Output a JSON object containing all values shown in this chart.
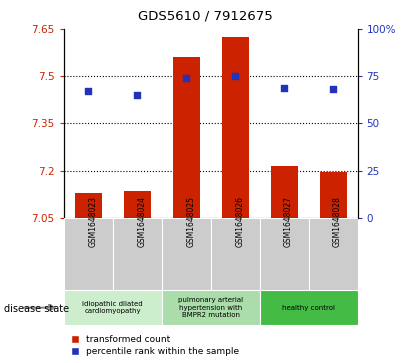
{
  "title": "GDS5610 / 7912675",
  "samples": [
    "GSM1648023",
    "GSM1648024",
    "GSM1648025",
    "GSM1648026",
    "GSM1648027",
    "GSM1648028"
  ],
  "bar_values": [
    7.13,
    7.135,
    7.56,
    7.625,
    7.215,
    7.195
  ],
  "percentile_values": [
    67,
    65,
    74,
    75,
    69,
    68
  ],
  "ylim_left": [
    7.05,
    7.65
  ],
  "ylim_right": [
    0,
    100
  ],
  "yticks_left": [
    7.05,
    7.2,
    7.35,
    7.5,
    7.65
  ],
  "yticks_right": [
    0,
    25,
    50,
    75,
    100
  ],
  "ytick_labels_left": [
    "7.05",
    "7.2",
    "7.35",
    "7.5",
    "7.65"
  ],
  "ytick_labels_right": [
    "0",
    "25",
    "50",
    "75",
    "100%"
  ],
  "hlines": [
    7.5,
    7.35,
    7.2
  ],
  "bar_color": "#cc2200",
  "dot_color": "#2233bb",
  "bar_width": 0.55,
  "disease_groups": [
    {
      "label": "idiopathic dilated\ncardiomyopathy",
      "cols": [
        0,
        1
      ],
      "color": "#cceecc"
    },
    {
      "label": "pulmonary arterial\nhypertension with\nBMPR2 mutation",
      "cols": [
        2,
        3
      ],
      "color": "#aaddaa"
    },
    {
      "label": "healthy control",
      "cols": [
        4,
        5
      ],
      "color": "#44bb44"
    }
  ],
  "disease_state_label": "disease state",
  "legend_bar_label": "transformed count",
  "legend_dot_label": "percentile rank within the sample",
  "sample_box_color": "#cccccc",
  "plot_bg_color": "#ffffff",
  "tick_color_left": "#cc2200",
  "tick_color_right": "#2233bb",
  "figsize": [
    4.11,
    3.63
  ],
  "dpi": 100
}
